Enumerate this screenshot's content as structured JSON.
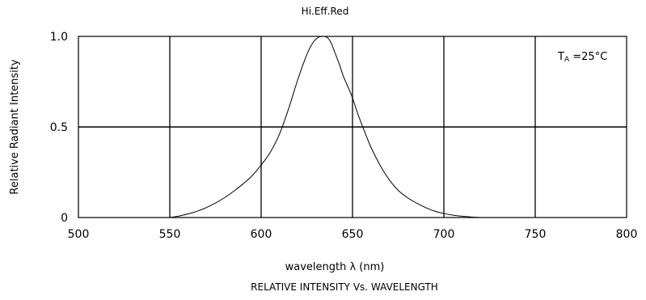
{
  "chart_data": {
    "type": "line",
    "title": "Hi.Eff.Red",
    "xlabel": "wavelength λ (nm)",
    "ylabel": "Relative Radiant Intensity",
    "caption": "RELATIVE INTENSITY Vs. WAVELENGTH",
    "annotation": {
      "subscript_base": "T",
      "subscript": "A",
      "text": " =25°C",
      "placement": "top-right"
    },
    "xlim": [
      500,
      800
    ],
    "ylim": [
      0,
      1.0
    ],
    "x_ticks": [
      500,
      550,
      600,
      650,
      700,
      750,
      800
    ],
    "x_tick_labels": [
      "500",
      "550",
      "600",
      "650",
      "700",
      "750",
      "800"
    ],
    "y_ticks": [
      0,
      0.5,
      1.0
    ],
    "y_tick_labels": [
      "0",
      "0.5",
      "1.0"
    ],
    "grid": true,
    "series": [
      {
        "color": "#000000",
        "x": [
          550,
          555,
          560,
          565,
          570,
          575,
          580,
          585,
          590,
          595,
          600,
          605,
          610,
          615,
          620,
          625,
          628,
          630,
          632,
          634,
          636,
          638,
          640,
          643,
          645,
          648,
          650,
          653,
          656,
          660,
          665,
          670,
          675,
          680,
          685,
          690,
          695,
          700,
          705,
          710,
          715,
          720
        ],
        "y": [
          0.0,
          0.008,
          0.02,
          0.035,
          0.055,
          0.08,
          0.11,
          0.145,
          0.185,
          0.23,
          0.29,
          0.36,
          0.46,
          0.6,
          0.76,
          0.9,
          0.96,
          0.985,
          0.998,
          1.0,
          0.995,
          0.97,
          0.92,
          0.84,
          0.78,
          0.71,
          0.66,
          0.57,
          0.49,
          0.39,
          0.29,
          0.21,
          0.15,
          0.11,
          0.08,
          0.055,
          0.035,
          0.022,
          0.013,
          0.007,
          0.003,
          0.0
        ]
      }
    ]
  }
}
